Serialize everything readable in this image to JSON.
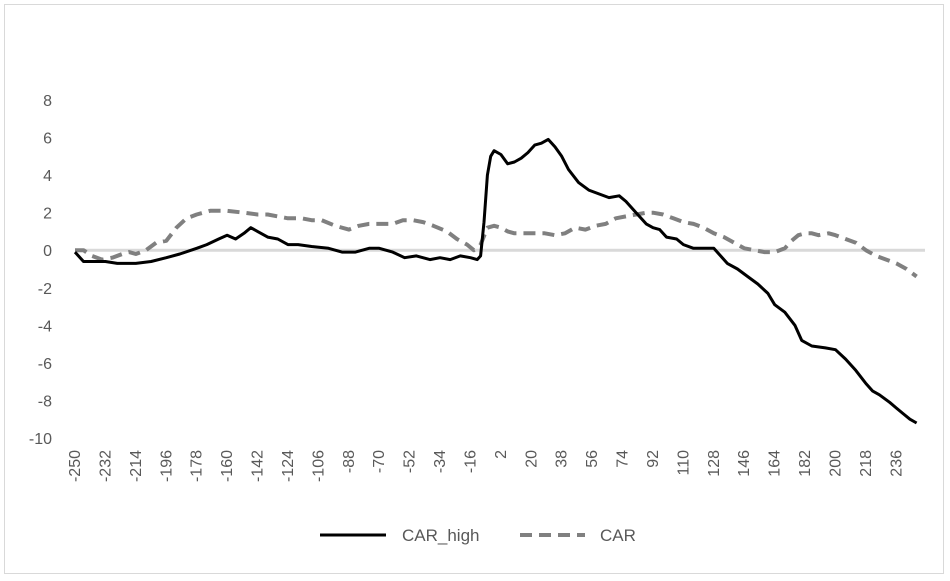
{
  "chart_data": {
    "type": "line",
    "title": "",
    "xlabel": "",
    "ylabel": "",
    "ylim": [
      -10,
      8
    ],
    "xlim": [
      -250,
      250
    ],
    "grid": false,
    "zero_line": true,
    "legend_position": "bottom",
    "x_tick_labels": [
      "-250",
      "-232",
      "-214",
      "-196",
      "-178",
      "-160",
      "-142",
      "-124",
      "-106",
      "-88",
      "-70",
      "-52",
      "-34",
      "-16",
      "2",
      "20",
      "38",
      "56",
      "74",
      "92",
      "110",
      "128",
      "146",
      "164",
      "182",
      "200",
      "218",
      "236"
    ],
    "y_tick_labels": [
      "8",
      "6",
      "4",
      "2",
      "0",
      "-2",
      "-4",
      "-6",
      "-8",
      "-10"
    ],
    "series": [
      {
        "name": "CAR_high",
        "color": "#000000",
        "style": "solid",
        "points": [
          [
            -250,
            -0.1
          ],
          [
            -245,
            -0.6
          ],
          [
            -240,
            -0.6
          ],
          [
            -232,
            -0.6
          ],
          [
            -225,
            -0.7
          ],
          [
            -218,
            -0.7
          ],
          [
            -214,
            -0.7
          ],
          [
            -205,
            -0.6
          ],
          [
            -196,
            -0.4
          ],
          [
            -188,
            -0.2
          ],
          [
            -178,
            0.1
          ],
          [
            -172,
            0.3
          ],
          [
            -165,
            0.6
          ],
          [
            -160,
            0.8
          ],
          [
            -155,
            0.6
          ],
          [
            -150,
            0.9
          ],
          [
            -146,
            1.2
          ],
          [
            -142,
            1.0
          ],
          [
            -136,
            0.7
          ],
          [
            -130,
            0.6
          ],
          [
            -124,
            0.3
          ],
          [
            -118,
            0.3
          ],
          [
            -110,
            0.2
          ],
          [
            -100,
            0.1
          ],
          [
            -92,
            -0.1
          ],
          [
            -84,
            -0.1
          ],
          [
            -76,
            0.1
          ],
          [
            -70,
            0.1
          ],
          [
            -62,
            -0.1
          ],
          [
            -55,
            -0.4
          ],
          [
            -48,
            -0.3
          ],
          [
            -40,
            -0.5
          ],
          [
            -34,
            -0.4
          ],
          [
            -28,
            -0.5
          ],
          [
            -22,
            -0.3
          ],
          [
            -16,
            -0.4
          ],
          [
            -12,
            -0.5
          ],
          [
            -10,
            -0.3
          ],
          [
            -8,
            1.5
          ],
          [
            -6,
            4.0
          ],
          [
            -4,
            5.0
          ],
          [
            -2,
            5.3
          ],
          [
            2,
            5.1
          ],
          [
            6,
            4.6
          ],
          [
            10,
            4.7
          ],
          [
            14,
            4.9
          ],
          [
            18,
            5.2
          ],
          [
            22,
            5.6
          ],
          [
            26,
            5.7
          ],
          [
            30,
            5.9
          ],
          [
            34,
            5.5
          ],
          [
            38,
            5.0
          ],
          [
            42,
            4.3
          ],
          [
            48,
            3.6
          ],
          [
            54,
            3.2
          ],
          [
            60,
            3.0
          ],
          [
            66,
            2.8
          ],
          [
            72,
            2.9
          ],
          [
            76,
            2.6
          ],
          [
            82,
            2.0
          ],
          [
            88,
            1.4
          ],
          [
            92,
            1.2
          ],
          [
            96,
            1.1
          ],
          [
            100,
            0.7
          ],
          [
            106,
            0.6
          ],
          [
            110,
            0.3
          ],
          [
            116,
            0.1
          ],
          [
            122,
            0.1
          ],
          [
            128,
            0.1
          ],
          [
            132,
            -0.3
          ],
          [
            136,
            -0.7
          ],
          [
            142,
            -1.0
          ],
          [
            148,
            -1.4
          ],
          [
            154,
            -1.8
          ],
          [
            160,
            -2.3
          ],
          [
            164,
            -2.9
          ],
          [
            170,
            -3.3
          ],
          [
            176,
            -4.0
          ],
          [
            180,
            -4.8
          ],
          [
            186,
            -5.1
          ],
          [
            194,
            -5.2
          ],
          [
            200,
            -5.3
          ],
          [
            206,
            -5.8
          ],
          [
            212,
            -6.4
          ],
          [
            218,
            -7.1
          ],
          [
            222,
            -7.5
          ],
          [
            226,
            -7.7
          ],
          [
            232,
            -8.1
          ],
          [
            236,
            -8.4
          ],
          [
            240,
            -8.7
          ],
          [
            244,
            -9.0
          ],
          [
            248,
            -9.2
          ]
        ]
      },
      {
        "name": "CAR",
        "color": "#808080",
        "style": "dashed",
        "points": [
          [
            -250,
            0.0
          ],
          [
            -245,
            0.0
          ],
          [
            -240,
            -0.3
          ],
          [
            -234,
            -0.5
          ],
          [
            -228,
            -0.4
          ],
          [
            -222,
            -0.2
          ],
          [
            -218,
            -0.1
          ],
          [
            -214,
            -0.2
          ],
          [
            -208,
            0.0
          ],
          [
            -202,
            0.4
          ],
          [
            -196,
            0.5
          ],
          [
            -190,
            1.2
          ],
          [
            -184,
            1.7
          ],
          [
            -178,
            1.9
          ],
          [
            -170,
            2.1
          ],
          [
            -160,
            2.1
          ],
          [
            -150,
            2.0
          ],
          [
            -142,
            1.9
          ],
          [
            -136,
            1.9
          ],
          [
            -130,
            1.8
          ],
          [
            -124,
            1.7
          ],
          [
            -116,
            1.7
          ],
          [
            -110,
            1.6
          ],
          [
            -104,
            1.6
          ],
          [
            -96,
            1.3
          ],
          [
            -88,
            1.1
          ],
          [
            -82,
            1.3
          ],
          [
            -76,
            1.4
          ],
          [
            -70,
            1.4
          ],
          [
            -62,
            1.4
          ],
          [
            -56,
            1.6
          ],
          [
            -50,
            1.6
          ],
          [
            -44,
            1.5
          ],
          [
            -38,
            1.3
          ],
          [
            -30,
            1.0
          ],
          [
            -24,
            0.6
          ],
          [
            -18,
            0.3
          ],
          [
            -14,
            0.0
          ],
          [
            -12,
            0.1
          ],
          [
            -10,
            0.3
          ],
          [
            -6,
            1.2
          ],
          [
            -2,
            1.3
          ],
          [
            2,
            1.2
          ],
          [
            6,
            1.0
          ],
          [
            10,
            0.9
          ],
          [
            16,
            0.9
          ],
          [
            22,
            0.9
          ],
          [
            28,
            0.9
          ],
          [
            34,
            0.8
          ],
          [
            40,
            0.9
          ],
          [
            46,
            1.2
          ],
          [
            52,
            1.1
          ],
          [
            58,
            1.3
          ],
          [
            64,
            1.4
          ],
          [
            70,
            1.7
          ],
          [
            76,
            1.8
          ],
          [
            82,
            1.9
          ],
          [
            88,
            2.0
          ],
          [
            92,
            2.0
          ],
          [
            98,
            1.9
          ],
          [
            104,
            1.7
          ],
          [
            110,
            1.5
          ],
          [
            116,
            1.4
          ],
          [
            122,
            1.2
          ],
          [
            128,
            0.9
          ],
          [
            134,
            0.7
          ],
          [
            140,
            0.4
          ],
          [
            146,
            0.1
          ],
          [
            152,
            0.0
          ],
          [
            158,
            -0.1
          ],
          [
            164,
            -0.1
          ],
          [
            170,
            0.1
          ],
          [
            174,
            0.5
          ],
          [
            178,
            0.8
          ],
          [
            182,
            0.9
          ],
          [
            186,
            0.9
          ],
          [
            190,
            0.8
          ],
          [
            196,
            0.9
          ],
          [
            200,
            0.8
          ],
          [
            206,
            0.6
          ],
          [
            212,
            0.4
          ],
          [
            218,
            0.0
          ],
          [
            224,
            -0.3
          ],
          [
            230,
            -0.5
          ],
          [
            236,
            -0.7
          ],
          [
            242,
            -1.0
          ],
          [
            248,
            -1.4
          ]
        ]
      }
    ]
  }
}
